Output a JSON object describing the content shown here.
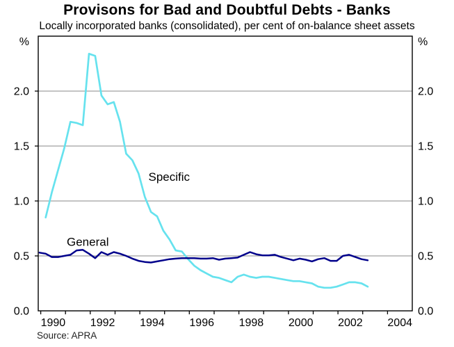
{
  "header": {
    "title": "Provisons for Bad and Doubtful Debts - Banks",
    "subtitle": "Locally incorporated banks (consolidated), per cent of on-balance sheet assets"
  },
  "footer": {
    "source": "Source: APRA"
  },
  "colors": {
    "specific_line": "#66E2EE",
    "general_line": "#00008B",
    "gridline": "#888888",
    "axis": "#000000",
    "text": "#000000"
  },
  "chart_data": {
    "type": "line",
    "title": "Provisons for Bad and Doubtful Debts - Banks",
    "subtitle": "Locally incorporated banks (consolidated), per cent of on-balance sheet assets",
    "unit_label": "%",
    "xlabel": "",
    "ylabel": "per cent of on-balance sheet assets",
    "x_range": [
      1989.9,
      2005.0
    ],
    "y_range": [
      0.0,
      2.5
    ],
    "gridlines": [
      0.5,
      1.0,
      1.5,
      2.0
    ],
    "y_ticks": [
      0.0,
      0.5,
      1.0,
      1.5,
      2.0
    ],
    "y_tick_labels": [
      "0.0",
      "0.5",
      "1.0",
      "1.5",
      "2.0"
    ],
    "x_ticks": [
      1990,
      1991,
      1992,
      1993,
      1994,
      1995,
      1996,
      1997,
      1998,
      1999,
      2000,
      2001,
      2002,
      2003,
      2004
    ],
    "x_tick_labels": [
      1990,
      1992,
      1994,
      1996,
      1998,
      2000,
      2002,
      2004
    ],
    "legend_position": "inline-annotations",
    "grid": true,
    "series": [
      {
        "name": "Specific",
        "color": "#66E2EE",
        "width": 2.7,
        "points": [
          [
            1990.2,
            0.85
          ],
          [
            1990.45,
            1.08
          ],
          [
            1990.7,
            1.28
          ],
          [
            1990.95,
            1.48
          ],
          [
            1991.2,
            1.72
          ],
          [
            1991.45,
            1.71
          ],
          [
            1991.7,
            1.69
          ],
          [
            1991.95,
            2.34
          ],
          [
            1992.2,
            2.32
          ],
          [
            1992.45,
            1.96
          ],
          [
            1992.7,
            1.88
          ],
          [
            1992.95,
            1.9
          ],
          [
            1993.2,
            1.72
          ],
          [
            1993.45,
            1.43
          ],
          [
            1993.7,
            1.37
          ],
          [
            1993.95,
            1.25
          ],
          [
            1994.2,
            1.04
          ],
          [
            1994.45,
            0.9
          ],
          [
            1994.7,
            0.86
          ],
          [
            1994.95,
            0.73
          ],
          [
            1995.2,
            0.65
          ],
          [
            1995.45,
            0.55
          ],
          [
            1995.7,
            0.54
          ],
          [
            1995.95,
            0.47
          ],
          [
            1996.2,
            0.41
          ],
          [
            1996.45,
            0.37
          ],
          [
            1996.7,
            0.34
          ],
          [
            1996.95,
            0.31
          ],
          [
            1997.2,
            0.3
          ],
          [
            1997.45,
            0.28
          ],
          [
            1997.7,
            0.26
          ],
          [
            1997.95,
            0.31
          ],
          [
            1998.2,
            0.33
          ],
          [
            1998.45,
            0.31
          ],
          [
            1998.7,
            0.3
          ],
          [
            1998.95,
            0.31
          ],
          [
            1999.2,
            0.31
          ],
          [
            1999.45,
            0.3
          ],
          [
            1999.7,
            0.29
          ],
          [
            1999.95,
            0.28
          ],
          [
            2000.2,
            0.27
          ],
          [
            2000.45,
            0.27
          ],
          [
            2000.7,
            0.26
          ],
          [
            2000.95,
            0.25
          ],
          [
            2001.2,
            0.22
          ],
          [
            2001.45,
            0.21
          ],
          [
            2001.7,
            0.21
          ],
          [
            2001.95,
            0.22
          ],
          [
            2002.2,
            0.24
          ],
          [
            2002.45,
            0.26
          ],
          [
            2002.7,
            0.26
          ],
          [
            2002.95,
            0.25
          ],
          [
            2003.2,
            0.22
          ]
        ]
      },
      {
        "name": "General",
        "color": "#00008B",
        "width": 2.5,
        "points": [
          [
            1989.95,
            0.53
          ],
          [
            1990.2,
            0.52
          ],
          [
            1990.45,
            0.49
          ],
          [
            1990.7,
            0.49
          ],
          [
            1990.95,
            0.5
          ],
          [
            1991.2,
            0.51
          ],
          [
            1991.45,
            0.55
          ],
          [
            1991.7,
            0.555
          ],
          [
            1991.95,
            0.52
          ],
          [
            1992.2,
            0.48
          ],
          [
            1992.45,
            0.535
          ],
          [
            1992.7,
            0.51
          ],
          [
            1992.95,
            0.535
          ],
          [
            1993.2,
            0.52
          ],
          [
            1993.45,
            0.5
          ],
          [
            1993.7,
            0.475
          ],
          [
            1993.95,
            0.455
          ],
          [
            1994.2,
            0.445
          ],
          [
            1994.45,
            0.44
          ],
          [
            1994.7,
            0.45
          ],
          [
            1994.95,
            0.46
          ],
          [
            1995.2,
            0.47
          ],
          [
            1995.45,
            0.475
          ],
          [
            1995.7,
            0.48
          ],
          [
            1995.95,
            0.48
          ],
          [
            1996.2,
            0.48
          ],
          [
            1996.45,
            0.475
          ],
          [
            1996.7,
            0.475
          ],
          [
            1996.95,
            0.48
          ],
          [
            1997.2,
            0.465
          ],
          [
            1997.45,
            0.475
          ],
          [
            1997.7,
            0.48
          ],
          [
            1997.95,
            0.485
          ],
          [
            1998.2,
            0.51
          ],
          [
            1998.45,
            0.535
          ],
          [
            1998.7,
            0.515
          ],
          [
            1998.95,
            0.505
          ],
          [
            1999.2,
            0.505
          ],
          [
            1999.45,
            0.51
          ],
          [
            1999.7,
            0.49
          ],
          [
            1999.95,
            0.475
          ],
          [
            2000.2,
            0.46
          ],
          [
            2000.45,
            0.475
          ],
          [
            2000.7,
            0.465
          ],
          [
            2000.95,
            0.45
          ],
          [
            2001.2,
            0.47
          ],
          [
            2001.45,
            0.48
          ],
          [
            2001.7,
            0.455
          ],
          [
            2001.95,
            0.455
          ],
          [
            2002.2,
            0.5
          ],
          [
            2002.45,
            0.51
          ],
          [
            2002.7,
            0.49
          ],
          [
            2002.95,
            0.47
          ],
          [
            2003.2,
            0.46
          ]
        ]
      }
    ],
    "annotations": [
      {
        "text": "Specific",
        "x": 1994.35,
        "y": 1.22,
        "anchor": "start"
      },
      {
        "text": "General",
        "x": 1991.05,
        "y": 0.63,
        "anchor": "start"
      }
    ]
  }
}
